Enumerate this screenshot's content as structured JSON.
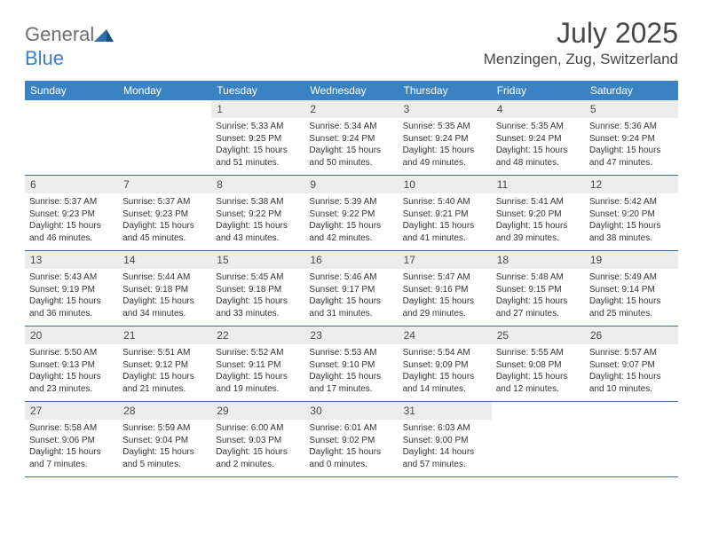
{
  "logo": {
    "part1": "General",
    "part2": "Blue"
  },
  "title": "July 2025",
  "location": "Menzingen, Zug, Switzerland",
  "colors": {
    "header_bg": "#3b82c4",
    "header_text": "#ffffff",
    "daynum_bg": "#ececec",
    "text": "#333333",
    "title_text": "#474747",
    "row_border": "#3b6fa0"
  },
  "weekdays": [
    "Sunday",
    "Monday",
    "Tuesday",
    "Wednesday",
    "Thursday",
    "Friday",
    "Saturday"
  ],
  "weeks": [
    [
      {
        "n": "",
        "sr": "",
        "ss": "",
        "dl": ""
      },
      {
        "n": "",
        "sr": "",
        "ss": "",
        "dl": ""
      },
      {
        "n": "1",
        "sr": "Sunrise: 5:33 AM",
        "ss": "Sunset: 9:25 PM",
        "dl": "Daylight: 15 hours and 51 minutes."
      },
      {
        "n": "2",
        "sr": "Sunrise: 5:34 AM",
        "ss": "Sunset: 9:24 PM",
        "dl": "Daylight: 15 hours and 50 minutes."
      },
      {
        "n": "3",
        "sr": "Sunrise: 5:35 AM",
        "ss": "Sunset: 9:24 PM",
        "dl": "Daylight: 15 hours and 49 minutes."
      },
      {
        "n": "4",
        "sr": "Sunrise: 5:35 AM",
        "ss": "Sunset: 9:24 PM",
        "dl": "Daylight: 15 hours and 48 minutes."
      },
      {
        "n": "5",
        "sr": "Sunrise: 5:36 AM",
        "ss": "Sunset: 9:24 PM",
        "dl": "Daylight: 15 hours and 47 minutes."
      }
    ],
    [
      {
        "n": "6",
        "sr": "Sunrise: 5:37 AM",
        "ss": "Sunset: 9:23 PM",
        "dl": "Daylight: 15 hours and 46 minutes."
      },
      {
        "n": "7",
        "sr": "Sunrise: 5:37 AM",
        "ss": "Sunset: 9:23 PM",
        "dl": "Daylight: 15 hours and 45 minutes."
      },
      {
        "n": "8",
        "sr": "Sunrise: 5:38 AM",
        "ss": "Sunset: 9:22 PM",
        "dl": "Daylight: 15 hours and 43 minutes."
      },
      {
        "n": "9",
        "sr": "Sunrise: 5:39 AM",
        "ss": "Sunset: 9:22 PM",
        "dl": "Daylight: 15 hours and 42 minutes."
      },
      {
        "n": "10",
        "sr": "Sunrise: 5:40 AM",
        "ss": "Sunset: 9:21 PM",
        "dl": "Daylight: 15 hours and 41 minutes."
      },
      {
        "n": "11",
        "sr": "Sunrise: 5:41 AM",
        "ss": "Sunset: 9:20 PM",
        "dl": "Daylight: 15 hours and 39 minutes."
      },
      {
        "n": "12",
        "sr": "Sunrise: 5:42 AM",
        "ss": "Sunset: 9:20 PM",
        "dl": "Daylight: 15 hours and 38 minutes."
      }
    ],
    [
      {
        "n": "13",
        "sr": "Sunrise: 5:43 AM",
        "ss": "Sunset: 9:19 PM",
        "dl": "Daylight: 15 hours and 36 minutes."
      },
      {
        "n": "14",
        "sr": "Sunrise: 5:44 AM",
        "ss": "Sunset: 9:18 PM",
        "dl": "Daylight: 15 hours and 34 minutes."
      },
      {
        "n": "15",
        "sr": "Sunrise: 5:45 AM",
        "ss": "Sunset: 9:18 PM",
        "dl": "Daylight: 15 hours and 33 minutes."
      },
      {
        "n": "16",
        "sr": "Sunrise: 5:46 AM",
        "ss": "Sunset: 9:17 PM",
        "dl": "Daylight: 15 hours and 31 minutes."
      },
      {
        "n": "17",
        "sr": "Sunrise: 5:47 AM",
        "ss": "Sunset: 9:16 PM",
        "dl": "Daylight: 15 hours and 29 minutes."
      },
      {
        "n": "18",
        "sr": "Sunrise: 5:48 AM",
        "ss": "Sunset: 9:15 PM",
        "dl": "Daylight: 15 hours and 27 minutes."
      },
      {
        "n": "19",
        "sr": "Sunrise: 5:49 AM",
        "ss": "Sunset: 9:14 PM",
        "dl": "Daylight: 15 hours and 25 minutes."
      }
    ],
    [
      {
        "n": "20",
        "sr": "Sunrise: 5:50 AM",
        "ss": "Sunset: 9:13 PM",
        "dl": "Daylight: 15 hours and 23 minutes."
      },
      {
        "n": "21",
        "sr": "Sunrise: 5:51 AM",
        "ss": "Sunset: 9:12 PM",
        "dl": "Daylight: 15 hours and 21 minutes."
      },
      {
        "n": "22",
        "sr": "Sunrise: 5:52 AM",
        "ss": "Sunset: 9:11 PM",
        "dl": "Daylight: 15 hours and 19 minutes."
      },
      {
        "n": "23",
        "sr": "Sunrise: 5:53 AM",
        "ss": "Sunset: 9:10 PM",
        "dl": "Daylight: 15 hours and 17 minutes."
      },
      {
        "n": "24",
        "sr": "Sunrise: 5:54 AM",
        "ss": "Sunset: 9:09 PM",
        "dl": "Daylight: 15 hours and 14 minutes."
      },
      {
        "n": "25",
        "sr": "Sunrise: 5:55 AM",
        "ss": "Sunset: 9:08 PM",
        "dl": "Daylight: 15 hours and 12 minutes."
      },
      {
        "n": "26",
        "sr": "Sunrise: 5:57 AM",
        "ss": "Sunset: 9:07 PM",
        "dl": "Daylight: 15 hours and 10 minutes."
      }
    ],
    [
      {
        "n": "27",
        "sr": "Sunrise: 5:58 AM",
        "ss": "Sunset: 9:06 PM",
        "dl": "Daylight: 15 hours and 7 minutes."
      },
      {
        "n": "28",
        "sr": "Sunrise: 5:59 AM",
        "ss": "Sunset: 9:04 PM",
        "dl": "Daylight: 15 hours and 5 minutes."
      },
      {
        "n": "29",
        "sr": "Sunrise: 6:00 AM",
        "ss": "Sunset: 9:03 PM",
        "dl": "Daylight: 15 hours and 2 minutes."
      },
      {
        "n": "30",
        "sr": "Sunrise: 6:01 AM",
        "ss": "Sunset: 9:02 PM",
        "dl": "Daylight: 15 hours and 0 minutes."
      },
      {
        "n": "31",
        "sr": "Sunrise: 6:03 AM",
        "ss": "Sunset: 9:00 PM",
        "dl": "Daylight: 14 hours and 57 minutes."
      },
      {
        "n": "",
        "sr": "",
        "ss": "",
        "dl": ""
      },
      {
        "n": "",
        "sr": "",
        "ss": "",
        "dl": ""
      }
    ]
  ]
}
